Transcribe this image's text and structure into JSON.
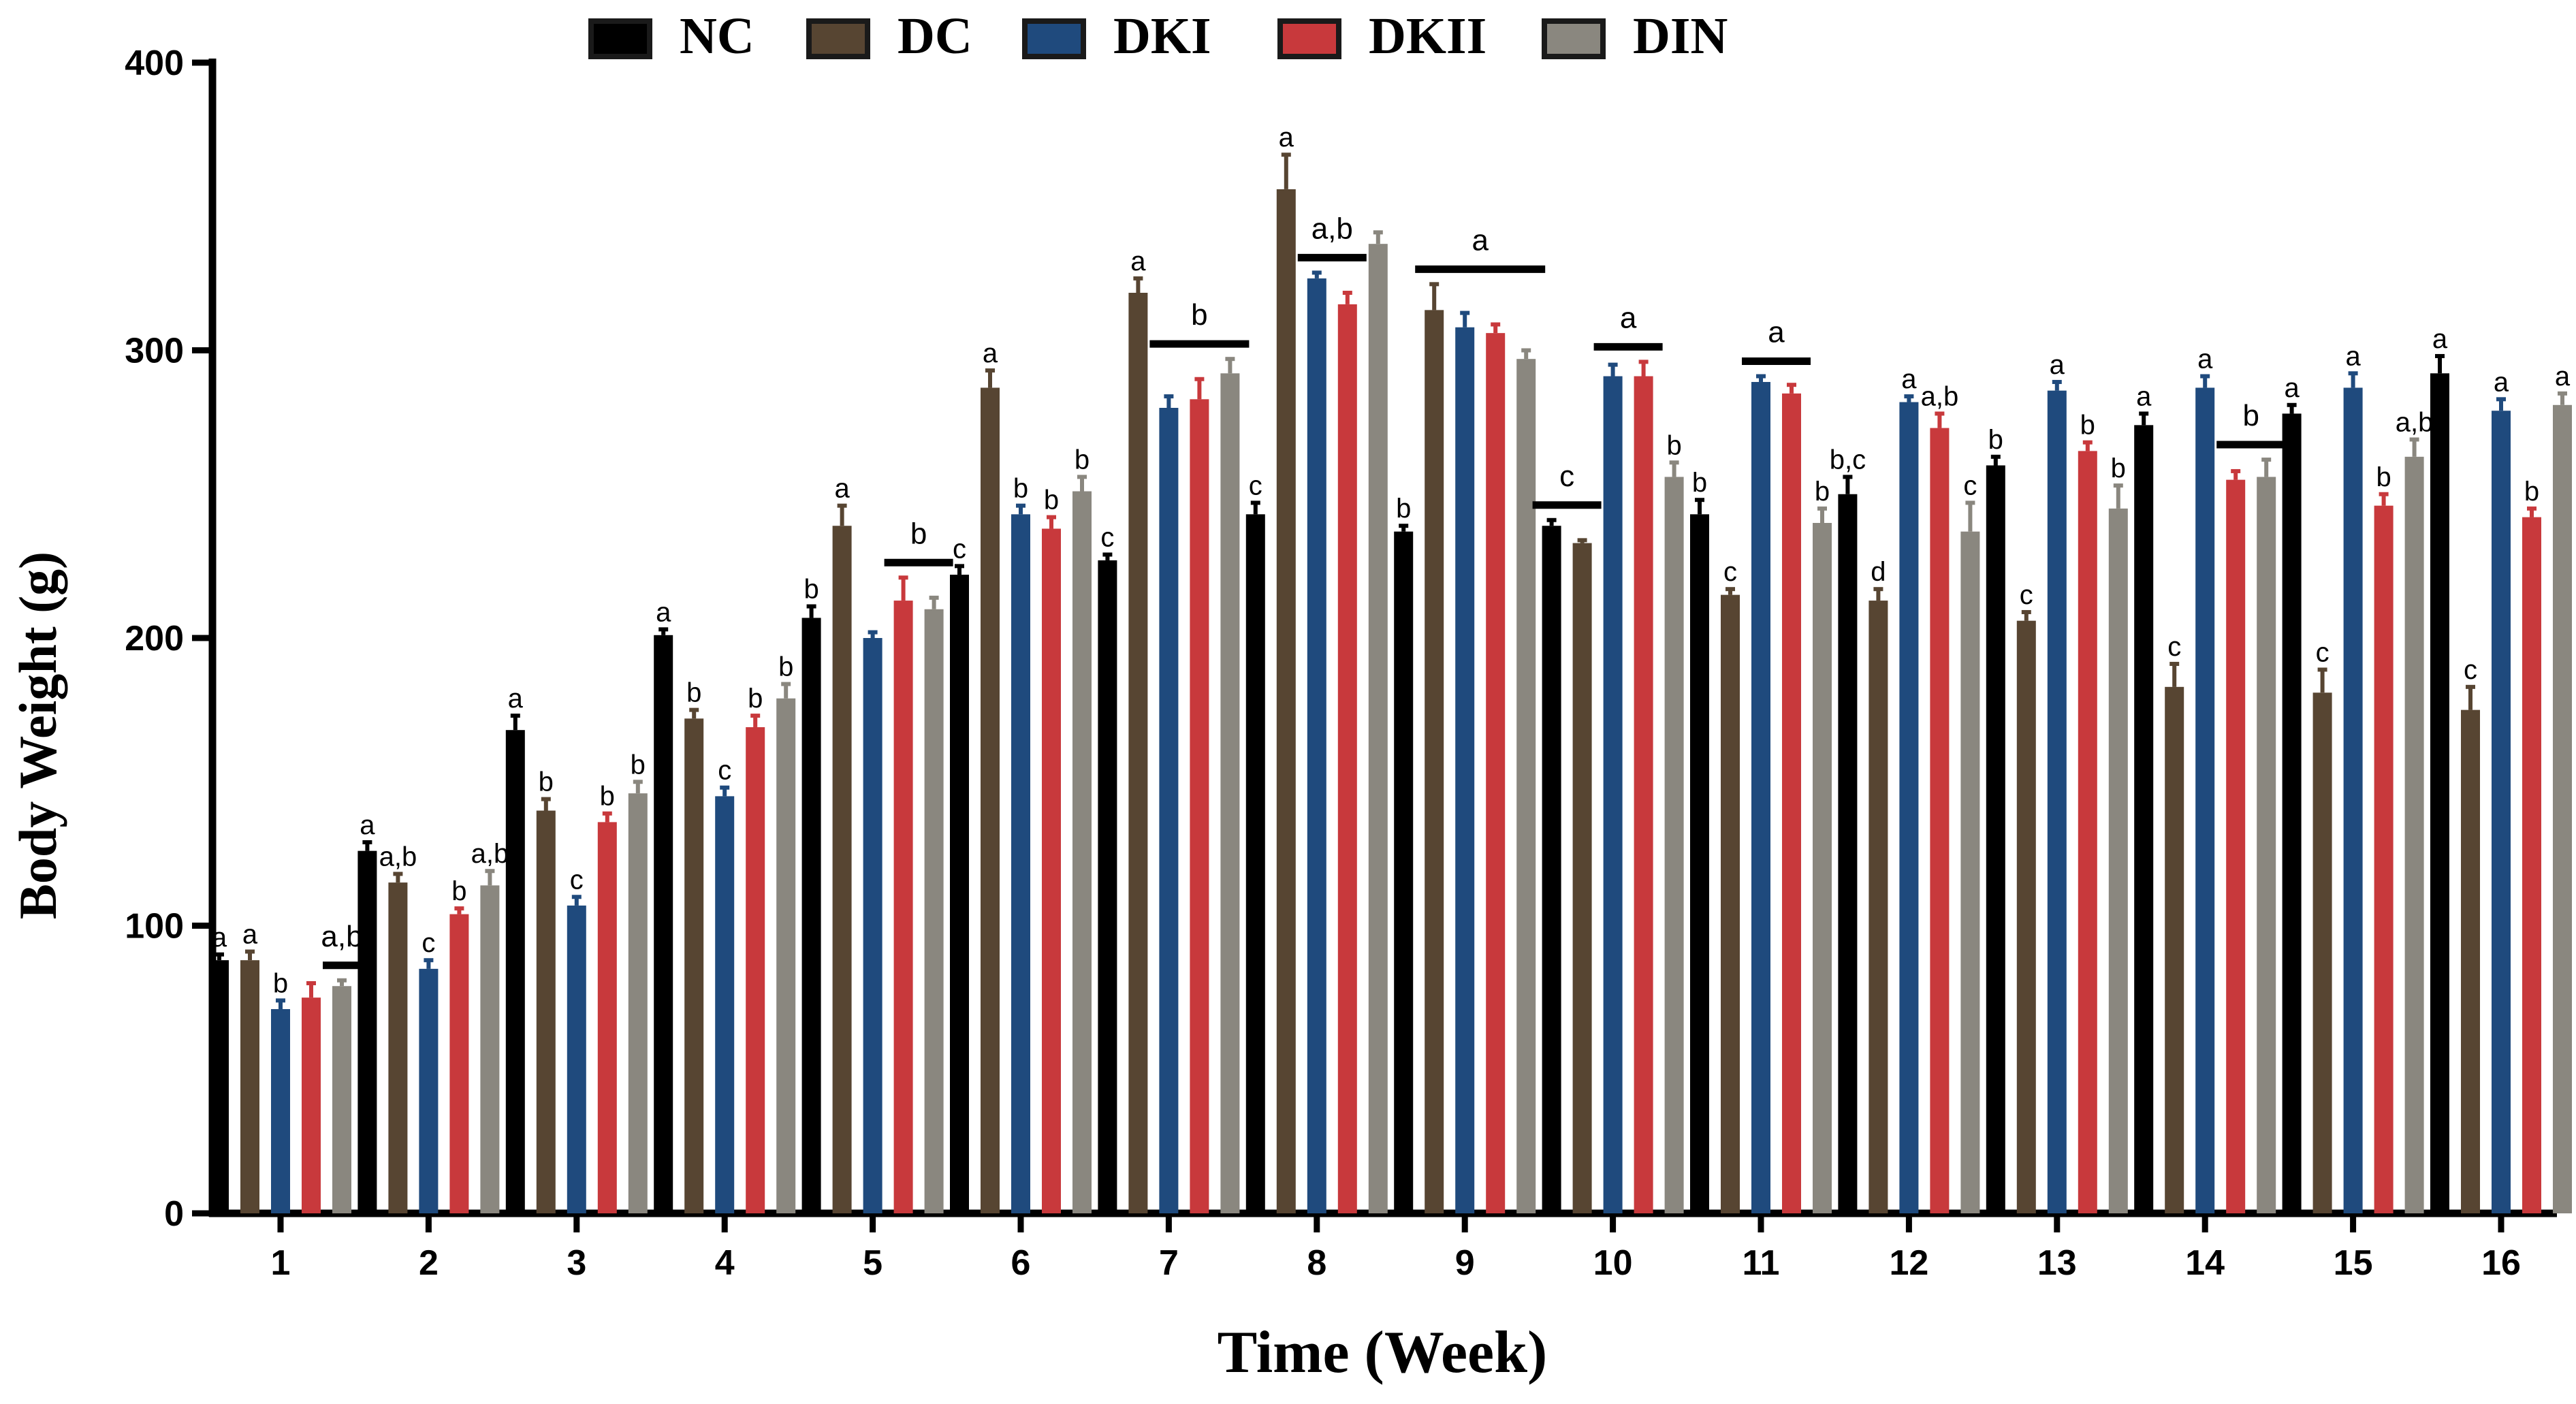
{
  "chart_data": {
    "type": "bar",
    "ylabel": "Body Weight (g)",
    "xlabel": "Time (Week)",
    "ylim": [
      0,
      400
    ],
    "yticks": [
      0,
      100,
      200,
      300,
      400
    ],
    "legend_position": "top",
    "categories": [
      "1",
      "2",
      "3",
      "4",
      "5",
      "6",
      "7",
      "8",
      "9",
      "10",
      "11",
      "12",
      "13",
      "14",
      "15",
      "16"
    ],
    "series": [
      {
        "name": "NC",
        "color": "#000000",
        "values": [
          88,
          126,
          168,
          201,
          207,
          222,
          227,
          243,
          237,
          239,
          243,
          250,
          260,
          274,
          278,
          292
        ],
        "errors": [
          2,
          3,
          5,
          2,
          4,
          3,
          2,
          4,
          2,
          2,
          5,
          6,
          3,
          4,
          3,
          6
        ],
        "letters": [
          "a",
          "a",
          "a",
          "a",
          "b",
          "c",
          "c",
          "c",
          "b",
          "",
          "b",
          "b,c",
          "b",
          "a",
          "a",
          "a"
        ]
      },
      {
        "name": "DC",
        "color": "#574532",
        "values": [
          88,
          115,
          140,
          172,
          239,
          287,
          320,
          356,
          314,
          233,
          215,
          213,
          206,
          183,
          181,
          175
        ],
        "errors": [
          3,
          3,
          4,
          3,
          7,
          6,
          5,
          12,
          9,
          1,
          2,
          4,
          3,
          8,
          8,
          8
        ],
        "letters": [
          "a",
          "a,b",
          "b",
          "b",
          "a",
          "a",
          "a",
          "a",
          "",
          "",
          "c",
          "d",
          "c",
          "c",
          "c",
          "c"
        ]
      },
      {
        "name": "DKI",
        "color": "#1f4a7d",
        "values": [
          71,
          85,
          107,
          145,
          200,
          243,
          280,
          325,
          308,
          291,
          289,
          282,
          286,
          287,
          287,
          279
        ],
        "errors": [
          3,
          3,
          3,
          3,
          2,
          3,
          4,
          2,
          5,
          4,
          2,
          2,
          3,
          4,
          5,
          4
        ],
        "letters": [
          "b",
          "c",
          "c",
          "c",
          "",
          "b",
          "",
          "",
          "",
          "",
          "",
          "a",
          "a",
          "a",
          "a",
          "a"
        ]
      },
      {
        "name": "DKII",
        "color": "#c8393c",
        "values": [
          75,
          104,
          136,
          169,
          213,
          238,
          283,
          316,
          306,
          291,
          285,
          273,
          265,
          255,
          246,
          242
        ],
        "errors": [
          5,
          2,
          3,
          4,
          8,
          4,
          7,
          4,
          3,
          5,
          3,
          5,
          3,
          3,
          4,
          3
        ],
        "letters": [
          "",
          "b",
          "b",
          "b",
          "",
          "b",
          "",
          "",
          "",
          "",
          "",
          "a,b",
          "b",
          "",
          "b",
          "b"
        ]
      },
      {
        "name": "DIN",
        "color": "#8a877f",
        "values": [
          79,
          114,
          146,
          179,
          210,
          251,
          292,
          337,
          297,
          256,
          240,
          237,
          245,
          256,
          263,
          281
        ],
        "errors": [
          2,
          5,
          4,
          5,
          4,
          5,
          5,
          4,
          3,
          5,
          5,
          10,
          8,
          6,
          6,
          4
        ],
        "letters": [
          "",
          "a,b",
          "b",
          "b",
          "",
          "b",
          "",
          "",
          "",
          "b",
          "b",
          "c",
          "b",
          "",
          "a,b",
          "a"
        ]
      }
    ],
    "group_annotations": [
      {
        "category": "1",
        "from_series": 4,
        "to_series": 4,
        "letter": "a,b"
      },
      {
        "category": "5",
        "from_series": 3,
        "to_series": 4,
        "letter": "b"
      },
      {
        "category": "7",
        "from_series": 2,
        "to_series": 4,
        "letter": "b"
      },
      {
        "category": "8",
        "from_series": 2,
        "to_series": 3,
        "letter": "a,b"
      },
      {
        "category": "9",
        "from_series": 1,
        "to_series": 4,
        "letter": "a"
      },
      {
        "category": "10",
        "from_series": 0,
        "to_series": 1,
        "letter": "c"
      },
      {
        "category": "10",
        "from_series": 2,
        "to_series": 3,
        "letter": "a"
      },
      {
        "category": "11",
        "from_series": 2,
        "to_series": 3,
        "letter": "a"
      },
      {
        "category": "14",
        "from_series": 3,
        "to_series": 4,
        "letter": "b"
      }
    ]
  }
}
